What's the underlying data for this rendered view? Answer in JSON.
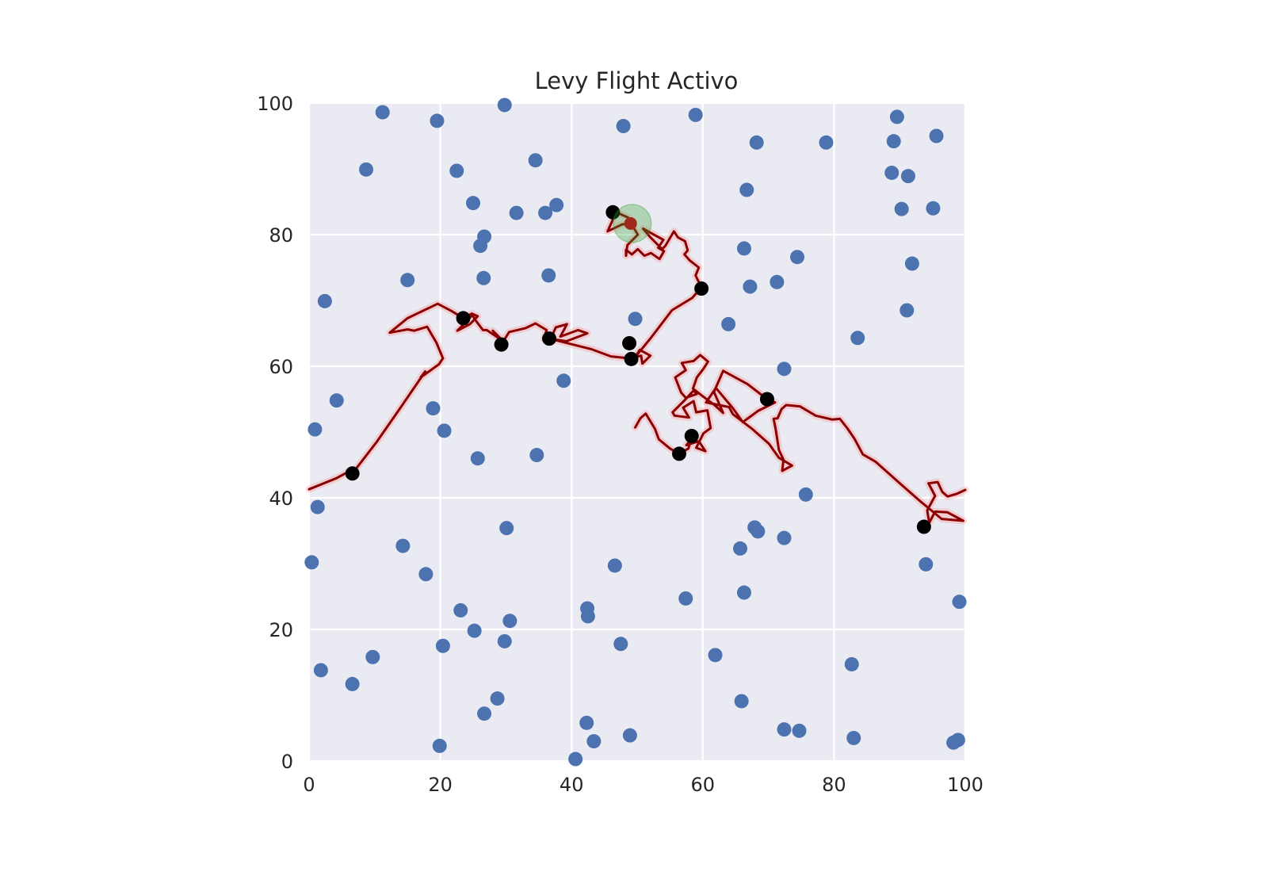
{
  "chart_data": {
    "type": "scatter",
    "title": "Levy Flight Activo",
    "xlabel": "",
    "ylabel": "",
    "xlim": [
      0,
      100
    ],
    "ylim": [
      0,
      100
    ],
    "xticks": [
      "0",
      "20",
      "40",
      "60",
      "80",
      "100"
    ],
    "yticks": [
      "0",
      "20",
      "40",
      "60",
      "80",
      "100"
    ],
    "grid": true,
    "colors": {
      "background": "#eaeaf2",
      "grid": "#ffffff",
      "targets": "#4c72b0",
      "path": "#8b0000",
      "path_glow": "#ff9999",
      "visited": "#000000",
      "current": "#2ca02c"
    },
    "targets": [
      [
        11.2,
        98.6
      ],
      [
        19.5,
        97.3
      ],
      [
        29.8,
        99.7
      ],
      [
        47.9,
        96.5
      ],
      [
        58.9,
        98.2
      ],
      [
        89.6,
        97.9
      ],
      [
        8.7,
        89.9
      ],
      [
        22.5,
        89.7
      ],
      [
        34.5,
        91.3
      ],
      [
        68.2,
        94.0
      ],
      [
        78.8,
        94.0
      ],
      [
        89.1,
        94.2
      ],
      [
        95.6,
        95.0
      ],
      [
        25.0,
        84.8
      ],
      [
        31.6,
        83.3
      ],
      [
        36.0,
        83.3
      ],
      [
        37.7,
        84.5
      ],
      [
        66.7,
        86.8
      ],
      [
        88.8,
        89.4
      ],
      [
        91.3,
        88.9
      ],
      [
        90.3,
        83.9
      ],
      [
        95.1,
        84.0
      ],
      [
        26.7,
        79.7
      ],
      [
        26.1,
        78.3
      ],
      [
        66.3,
        77.9
      ],
      [
        74.4,
        76.6
      ],
      [
        91.9,
        75.6
      ],
      [
        2.4,
        69.9
      ],
      [
        15.0,
        73.1
      ],
      [
        26.6,
        73.4
      ],
      [
        36.5,
        73.8
      ],
      [
        67.2,
        72.1
      ],
      [
        71.3,
        72.8
      ],
      [
        91.1,
        68.5
      ],
      [
        49.7,
        67.2
      ],
      [
        63.9,
        66.4
      ],
      [
        83.6,
        64.3
      ],
      [
        72.4,
        59.6
      ],
      [
        38.8,
        57.8
      ],
      [
        4.2,
        54.8
      ],
      [
        18.9,
        53.6
      ],
      [
        0.9,
        50.4
      ],
      [
        20.6,
        50.2
      ],
      [
        25.7,
        46.0
      ],
      [
        34.7,
        46.5
      ],
      [
        75.7,
        40.5
      ],
      [
        1.3,
        38.6
      ],
      [
        30.1,
        35.4
      ],
      [
        67.9,
        35.5
      ],
      [
        68.4,
        34.9
      ],
      [
        72.4,
        33.9
      ],
      [
        14.3,
        32.7
      ],
      [
        65.7,
        32.3
      ],
      [
        0.4,
        30.2
      ],
      [
        46.6,
        29.7
      ],
      [
        94.0,
        29.9
      ],
      [
        17.8,
        28.4
      ],
      [
        66.3,
        25.6
      ],
      [
        57.4,
        24.7
      ],
      [
        23.1,
        22.9
      ],
      [
        42.4,
        23.2
      ],
      [
        42.5,
        22.0
      ],
      [
        30.6,
        21.3
      ],
      [
        99.1,
        24.2
      ],
      [
        25.2,
        19.8
      ],
      [
        29.8,
        18.2
      ],
      [
        20.4,
        17.5
      ],
      [
        47.5,
        17.8
      ],
      [
        61.9,
        16.1
      ],
      [
        82.7,
        14.7
      ],
      [
        9.7,
        15.8
      ],
      [
        1.8,
        13.8
      ],
      [
        6.6,
        11.7
      ],
      [
        28.7,
        9.5
      ],
      [
        65.9,
        9.1
      ],
      [
        26.7,
        7.2
      ],
      [
        42.3,
        5.8
      ],
      [
        43.4,
        3.0
      ],
      [
        48.9,
        3.9
      ],
      [
        72.4,
        4.8
      ],
      [
        74.7,
        4.6
      ],
      [
        83.0,
        3.5
      ],
      [
        19.9,
        2.3
      ],
      [
        40.6,
        0.3
      ],
      [
        98.2,
        2.8
      ],
      [
        98.9,
        3.2
      ]
    ],
    "path": [
      [
        0.0,
        41.3
      ],
      [
        4.2,
        43.0
      ],
      [
        5.5,
        43.7
      ],
      [
        6.6,
        43.7
      ],
      [
        10.3,
        48.5
      ],
      [
        14.0,
        53.8
      ],
      [
        17.7,
        59.2
      ],
      [
        17.0,
        58.3
      ],
      [
        19.8,
        60.3
      ],
      [
        20.4,
        61.2
      ],
      [
        19.4,
        63.6
      ],
      [
        18.0,
        66.0
      ],
      [
        16.0,
        65.4
      ],
      [
        15.0,
        65.6
      ],
      [
        12.3,
        65.1
      ],
      [
        15.0,
        67.3
      ],
      [
        19.6,
        69.5
      ],
      [
        21.7,
        68.4
      ],
      [
        23.5,
        67.3
      ],
      [
        24.8,
        68.0
      ],
      [
        25.7,
        67.6
      ],
      [
        24.5,
        66.4
      ],
      [
        22.6,
        65.4
      ],
      [
        24.9,
        67.8
      ],
      [
        25.2,
        67.2
      ],
      [
        26.5,
        65.5
      ],
      [
        27.1,
        65.5
      ],
      [
        27.5,
        65.2
      ],
      [
        29.3,
        64.0
      ],
      [
        28.0,
        65.4
      ],
      [
        29.6,
        63.8
      ],
      [
        30.5,
        65.2
      ],
      [
        33.0,
        65.8
      ],
      [
        34.5,
        66.5
      ],
      [
        36.2,
        65.5
      ],
      [
        35.8,
        64.2
      ],
      [
        37.1,
        64.8
      ],
      [
        37.6,
        65.9
      ],
      [
        39.3,
        66.4
      ],
      [
        38.3,
        64.5
      ],
      [
        41.0,
        65.5
      ],
      [
        42.4,
        65.0
      ],
      [
        39.2,
        63.8
      ],
      [
        36.6,
        64.2
      ],
      [
        43.0,
        62.6
      ],
      [
        46.0,
        61.5
      ],
      [
        48.8,
        61.2
      ],
      [
        50.6,
        61.6
      ],
      [
        50.8,
        60.4
      ],
      [
        52.0,
        61.6
      ],
      [
        50.4,
        62.5
      ],
      [
        49.7,
        61.4
      ],
      [
        52.0,
        64.2
      ],
      [
        55.3,
        68.5
      ],
      [
        58.4,
        70.4
      ],
      [
        59.8,
        72.0
      ],
      [
        58.9,
        73.8
      ],
      [
        59.4,
        75.0
      ],
      [
        58.0,
        76.1
      ],
      [
        57.2,
        77.0
      ],
      [
        57.7,
        77.6
      ],
      [
        57.3,
        79.0
      ],
      [
        56.2,
        79.6
      ],
      [
        55.6,
        80.5
      ],
      [
        54.3,
        78.3
      ],
      [
        53.8,
        77.8
      ],
      [
        52.0,
        79.6
      ],
      [
        50.9,
        80.9
      ],
      [
        54.0,
        79.2
      ],
      [
        53.2,
        78.0
      ],
      [
        54.1,
        77.5
      ],
      [
        53.4,
        76.3
      ],
      [
        52.1,
        77.2
      ],
      [
        51.1,
        76.8
      ],
      [
        50.1,
        77.8
      ],
      [
        49.2,
        77.0
      ],
      [
        48.3,
        77.7
      ],
      [
        48.3,
        76.8
      ],
      [
        48.5,
        78.4
      ],
      [
        50.1,
        80.0
      ],
      [
        49.2,
        81.5
      ],
      [
        47.8,
        81.6
      ],
      [
        45.5,
        80.5
      ],
      [
        46.8,
        83.4
      ],
      [
        48.6,
        82.6
      ],
      [
        49.0,
        81.7
      ]
    ],
    "path2": [
      [
        49.7,
        50.7
      ],
      [
        50.5,
        52.1
      ],
      [
        51.3,
        52.8
      ],
      [
        52.7,
        50.5
      ],
      [
        53.3,
        48.9
      ],
      [
        55.0,
        47.5
      ],
      [
        56.4,
        46.7
      ],
      [
        57.8,
        47.5
      ],
      [
        58.3,
        49.0
      ],
      [
        57.5,
        48.0
      ],
      [
        59.4,
        48.6
      ],
      [
        60.4,
        47.1
      ],
      [
        59.0,
        47.6
      ],
      [
        60.1,
        49.8
      ],
      [
        61.2,
        50.6
      ],
      [
        60.7,
        53.3
      ],
      [
        59.0,
        53.0
      ],
      [
        58.6,
        54.7
      ],
      [
        57.0,
        53.7
      ],
      [
        57.9,
        52.2
      ],
      [
        55.7,
        52.5
      ],
      [
        55.4,
        53.0
      ],
      [
        57.2,
        54.8
      ],
      [
        58.6,
        56.3
      ],
      [
        59.1,
        55.8
      ],
      [
        57.4,
        55.2
      ],
      [
        56.7,
        56.0
      ],
      [
        55.8,
        58.3
      ],
      [
        57.4,
        59.4
      ],
      [
        56.8,
        60.5
      ],
      [
        58.6,
        60.8
      ],
      [
        59.6,
        61.7
      ],
      [
        60.8,
        60.7
      ],
      [
        60.1,
        59.6
      ],
      [
        59.1,
        58.3
      ],
      [
        58.5,
        56.6
      ],
      [
        59.9,
        55.5
      ],
      [
        61.8,
        54.1
      ],
      [
        63.1,
        52.9
      ],
      [
        61.7,
        56.1
      ],
      [
        63.1,
        59.3
      ],
      [
        66.8,
        57.3
      ],
      [
        69.8,
        55.0
      ],
      [
        71.0,
        54.5
      ],
      [
        68.4,
        53.2
      ],
      [
        66.1,
        51.5
      ],
      [
        64.6,
        53.6
      ],
      [
        62.0,
        56.7
      ],
      [
        60.5,
        54.5
      ],
      [
        64.0,
        53.8
      ],
      [
        64.6,
        52.7
      ],
      [
        67.5,
        50.5
      ],
      [
        70.1,
        48.2
      ],
      [
        71.6,
        46.1
      ],
      [
        73.6,
        44.9
      ],
      [
        72.1,
        44.1
      ],
      [
        72.3,
        45.8
      ],
      [
        71.6,
        47.3
      ],
      [
        71.1,
        50.5
      ],
      [
        70.8,
        52.0
      ],
      [
        71.4,
        52.1
      ],
      [
        72.0,
        53.5
      ],
      [
        72.7,
        54.1
      ],
      [
        74.8,
        53.9
      ],
      [
        77.2,
        52.5
      ],
      [
        79.7,
        51.9
      ],
      [
        80.9,
        52.0
      ],
      [
        82.0,
        50.6
      ],
      [
        83.1,
        49.0
      ],
      [
        84.4,
        46.6
      ],
      [
        86.3,
        45.5
      ],
      [
        89.7,
        42.5
      ],
      [
        93.0,
        39.6
      ],
      [
        96.4,
        36.8
      ],
      [
        99.7,
        36.5
      ],
      [
        97.3,
        37.8
      ],
      [
        95.4,
        37.9
      ],
      [
        94.5,
        36.2
      ],
      [
        94.2,
        38.1
      ],
      [
        95.4,
        40.3
      ],
      [
        94.4,
        42.2
      ],
      [
        95.8,
        42.4
      ],
      [
        96.5,
        40.9
      ],
      [
        97.3,
        40.2
      ],
      [
        98.7,
        40.6
      ],
      [
        100.0,
        41.2
      ]
    ],
    "visited": [
      [
        6.6,
        43.7
      ],
      [
        23.5,
        67.3
      ],
      [
        29.3,
        63.3
      ],
      [
        36.6,
        64.2
      ],
      [
        48.8,
        63.5
      ],
      [
        49.1,
        61.1
      ],
      [
        46.3,
        83.4
      ],
      [
        59.8,
        71.8
      ],
      [
        69.8,
        55.0
      ],
      [
        58.3,
        49.4
      ],
      [
        56.4,
        46.7
      ],
      [
        93.7,
        35.6
      ]
    ],
    "current": [
      49.0,
      81.7
    ]
  }
}
